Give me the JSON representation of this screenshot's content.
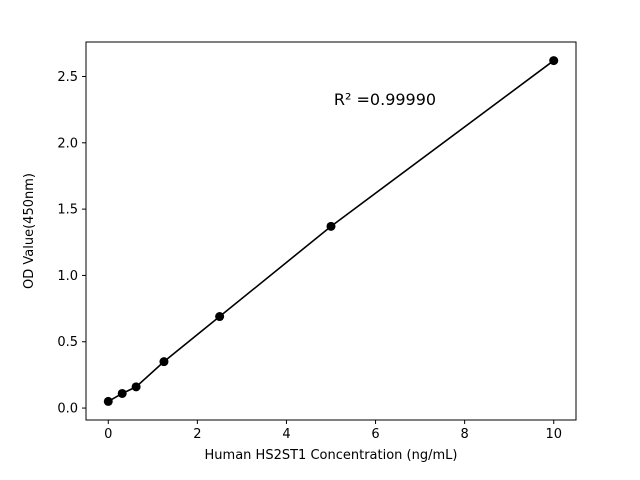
{
  "chart_data": {
    "type": "scatter",
    "x": [
      0,
      0.3125,
      0.625,
      1.25,
      2.5,
      5,
      10
    ],
    "y": [
      0.05,
      0.11,
      0.16,
      0.35,
      0.69,
      1.37,
      2.62
    ],
    "title": "",
    "xlabel": "Human HS2ST1 Concentration (ng/mL)",
    "ylabel": "OD Value(450nm)",
    "annotation": "R² =0.99990",
    "x_ticks": [
      0,
      2,
      4,
      6,
      8,
      10
    ],
    "y_ticks": [
      0.0,
      0.5,
      1.0,
      1.5,
      2.0,
      2.5
    ],
    "xlim": [
      -0.5,
      10.5
    ],
    "ylim": [
      -0.09,
      2.76
    ],
    "grid": false,
    "legend": "none",
    "line_color": "#000000",
    "marker_color": "#000000",
    "background_color": "#ffffff"
  }
}
